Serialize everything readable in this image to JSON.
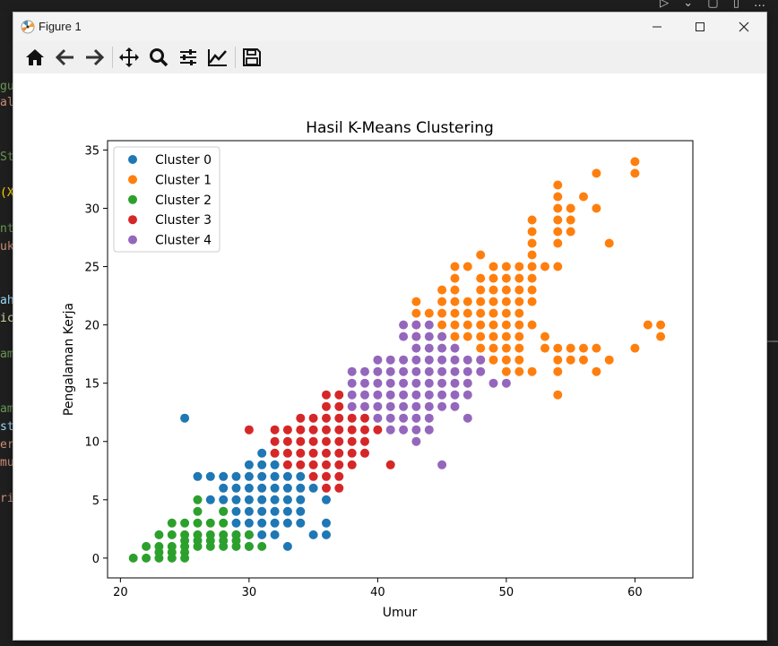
{
  "window": {
    "title": "Figure 1",
    "minimize_icon": "minimize-icon",
    "maximize_icon": "maximize-icon",
    "close_icon": "close-icon"
  },
  "editor_fragments": [
    {
      "text": "gu",
      "color": "#6a9955"
    },
    {
      "text": "al",
      "color": "#ce9178"
    },
    {
      "text": "St",
      "color": "#6a9955"
    },
    {
      "text": "(X",
      "color": "#ffd700"
    },
    {
      "text": "nt",
      "color": "#6a9955"
    },
    {
      "text": "uk",
      "color": "#ce9178"
    },
    {
      "text": "ah",
      "color": "#9cdcfe"
    },
    {
      "text": "ic",
      "color": "#dcdcaa"
    },
    {
      "text": "am",
      "color": "#6a9955"
    },
    {
      "text": "am",
      "color": "#6a9955"
    },
    {
      "text": "st",
      "color": "#9cdcfe"
    },
    {
      "text": "er",
      "color": "#ce9178"
    },
    {
      "text": "mu",
      "color": "#ce9178"
    },
    {
      "text": "ri",
      "color": "#ce9178"
    }
  ],
  "toolbar": {
    "buttons": [
      "home-icon",
      "back-icon",
      "forward-icon",
      "pan-icon",
      "zoom-icon",
      "configure-subplots-icon",
      "edit-axis-icon",
      "save-icon"
    ]
  },
  "chart_data": {
    "type": "scatter",
    "title": "Hasil K-Means Clustering",
    "xlabel": "Umur",
    "ylabel": "Pengalaman Kerja",
    "xlim": [
      19,
      64.5
    ],
    "ylim": [
      -1.7,
      35.8
    ],
    "xticks": [
      20,
      30,
      40,
      50,
      60
    ],
    "yticks": [
      0,
      5,
      10,
      15,
      20,
      25,
      30,
      35
    ],
    "grid": false,
    "legend_position": "top-left",
    "series": [
      {
        "name": "Cluster 0",
        "color": "#1f77b4",
        "points": [
          [
            25,
            12
          ],
          [
            26,
            7
          ],
          [
            27,
            7
          ],
          [
            27,
            5
          ],
          [
            28,
            7
          ],
          [
            28,
            6
          ],
          [
            28,
            5
          ],
          [
            28,
            4
          ],
          [
            29,
            7
          ],
          [
            29,
            6
          ],
          [
            29,
            5
          ],
          [
            29,
            4
          ],
          [
            29,
            3
          ],
          [
            29,
            2
          ],
          [
            30,
            8
          ],
          [
            30,
            7
          ],
          [
            30,
            6
          ],
          [
            30,
            5
          ],
          [
            30,
            4
          ],
          [
            30,
            3
          ],
          [
            30,
            2
          ],
          [
            30,
            1
          ],
          [
            31,
            9
          ],
          [
            31,
            8
          ],
          [
            31,
            7
          ],
          [
            31,
            6
          ],
          [
            31,
            5
          ],
          [
            31,
            4
          ],
          [
            31,
            3
          ],
          [
            31,
            2
          ],
          [
            32,
            8
          ],
          [
            32,
            7
          ],
          [
            32,
            6
          ],
          [
            32,
            5
          ],
          [
            32,
            4
          ],
          [
            32,
            3
          ],
          [
            32,
            2
          ],
          [
            33,
            7
          ],
          [
            33,
            6
          ],
          [
            33,
            5
          ],
          [
            33,
            4
          ],
          [
            33,
            3
          ],
          [
            33,
            1
          ],
          [
            34,
            7
          ],
          [
            34,
            6
          ],
          [
            34,
            5
          ],
          [
            34,
            4
          ],
          [
            34,
            3
          ],
          [
            35,
            6
          ],
          [
            35,
            2
          ],
          [
            36,
            5
          ],
          [
            36,
            3
          ],
          [
            36,
            2
          ]
        ]
      },
      {
        "name": "Cluster 1",
        "color": "#ff7f0e",
        "points": [
          [
            43,
            22
          ],
          [
            43,
            21
          ],
          [
            43,
            20
          ],
          [
            43,
            19
          ],
          [
            44,
            21
          ],
          [
            45,
            23
          ],
          [
            45,
            22
          ],
          [
            45,
            21
          ],
          [
            45,
            20
          ],
          [
            45,
            19
          ],
          [
            46,
            25
          ],
          [
            46,
            24
          ],
          [
            46,
            23
          ],
          [
            46,
            22
          ],
          [
            46,
            21
          ],
          [
            46,
            20
          ],
          [
            46,
            19
          ],
          [
            47,
            25
          ],
          [
            47,
            22
          ],
          [
            47,
            21
          ],
          [
            47,
            20
          ],
          [
            47,
            19
          ],
          [
            48,
            26
          ],
          [
            48,
            24
          ],
          [
            48,
            23
          ],
          [
            48,
            22
          ],
          [
            48,
            21
          ],
          [
            48,
            20
          ],
          [
            48,
            19
          ],
          [
            48,
            18
          ],
          [
            48,
            17
          ],
          [
            49,
            25
          ],
          [
            49,
            24
          ],
          [
            49,
            23
          ],
          [
            49,
            22
          ],
          [
            49,
            21
          ],
          [
            49,
            20
          ],
          [
            49,
            19
          ],
          [
            49,
            18
          ],
          [
            49,
            17
          ],
          [
            50,
            25
          ],
          [
            50,
            24
          ],
          [
            50,
            23
          ],
          [
            50,
            22
          ],
          [
            50,
            21
          ],
          [
            50,
            20
          ],
          [
            50,
            19
          ],
          [
            50,
            18
          ],
          [
            50,
            17
          ],
          [
            50,
            16
          ],
          [
            51,
            25
          ],
          [
            51,
            24
          ],
          [
            51,
            23
          ],
          [
            51,
            22
          ],
          [
            51,
            21
          ],
          [
            51,
            20
          ],
          [
            51,
            19
          ],
          [
            51,
            18
          ],
          [
            51,
            17
          ],
          [
            51,
            16
          ],
          [
            52,
            29
          ],
          [
            52,
            28
          ],
          [
            52,
            27
          ],
          [
            52,
            26
          ],
          [
            52,
            25
          ],
          [
            52,
            24
          ],
          [
            52,
            23
          ],
          [
            52,
            22
          ],
          [
            52,
            20
          ],
          [
            52,
            16
          ],
          [
            53,
            25
          ],
          [
            53,
            19
          ],
          [
            53,
            18
          ],
          [
            54,
            32
          ],
          [
            54,
            31
          ],
          [
            54,
            30
          ],
          [
            54,
            29
          ],
          [
            54,
            28
          ],
          [
            54,
            27
          ],
          [
            54,
            25
          ],
          [
            54,
            18
          ],
          [
            54,
            17
          ],
          [
            54,
            16
          ],
          [
            54,
            14
          ],
          [
            55,
            30
          ],
          [
            55,
            29
          ],
          [
            55,
            28
          ],
          [
            55,
            18
          ],
          [
            55,
            17
          ],
          [
            56,
            31
          ],
          [
            56,
            18
          ],
          [
            56,
            17
          ],
          [
            57,
            33
          ],
          [
            57,
            30
          ],
          [
            57,
            18
          ],
          [
            57,
            16
          ],
          [
            58,
            27
          ],
          [
            58,
            17
          ],
          [
            60,
            34
          ],
          [
            60,
            33
          ],
          [
            60,
            18
          ],
          [
            61,
            20
          ],
          [
            62,
            20
          ],
          [
            62,
            19
          ]
        ]
      },
      {
        "name": "Cluster 2",
        "color": "#2ca02c",
        "points": [
          [
            21,
            0
          ],
          [
            22,
            1
          ],
          [
            22,
            0
          ],
          [
            23,
            2
          ],
          [
            23,
            1
          ],
          [
            23,
            0.5
          ],
          [
            23,
            0
          ],
          [
            24,
            3
          ],
          [
            24,
            2
          ],
          [
            24,
            1
          ],
          [
            24,
            0.5
          ],
          [
            24,
            0
          ],
          [
            25,
            3
          ],
          [
            25,
            2
          ],
          [
            25,
            1.5
          ],
          [
            25,
            1
          ],
          [
            25,
            0.5
          ],
          [
            25,
            0
          ],
          [
            26,
            5
          ],
          [
            26,
            4
          ],
          [
            26,
            3
          ],
          [
            26,
            2
          ],
          [
            26,
            1.5
          ],
          [
            26,
            1
          ],
          [
            27,
            3
          ],
          [
            27,
            2
          ],
          [
            27,
            1.5
          ],
          [
            27,
            1
          ],
          [
            28,
            4
          ],
          [
            28,
            3
          ],
          [
            28,
            2
          ],
          [
            28,
            1.5
          ],
          [
            28,
            1
          ],
          [
            29,
            2
          ],
          [
            29,
            1.5
          ],
          [
            29,
            1
          ],
          [
            30,
            2
          ],
          [
            30,
            1
          ],
          [
            31,
            1
          ]
        ]
      },
      {
        "name": "Cluster 3",
        "color": "#d62728",
        "points": [
          [
            30,
            11
          ],
          [
            32,
            11
          ],
          [
            32,
            10
          ],
          [
            32,
            9
          ],
          [
            33,
            11
          ],
          [
            33,
            10
          ],
          [
            33,
            9
          ],
          [
            33,
            8
          ],
          [
            34,
            12
          ],
          [
            34,
            11
          ],
          [
            34,
            10
          ],
          [
            34,
            9
          ],
          [
            34,
            8
          ],
          [
            35,
            12
          ],
          [
            35,
            11
          ],
          [
            35,
            10
          ],
          [
            35,
            9
          ],
          [
            35,
            8
          ],
          [
            35,
            7
          ],
          [
            36,
            14
          ],
          [
            36,
            13
          ],
          [
            36,
            12
          ],
          [
            36,
            11
          ],
          [
            36,
            10
          ],
          [
            36,
            9
          ],
          [
            36,
            8
          ],
          [
            36,
            7
          ],
          [
            36,
            6
          ],
          [
            37,
            14
          ],
          [
            37,
            13
          ],
          [
            37,
            12
          ],
          [
            37,
            11
          ],
          [
            37,
            10
          ],
          [
            37,
            9
          ],
          [
            37,
            8
          ],
          [
            37,
            7
          ],
          [
            37,
            6
          ],
          [
            38,
            12
          ],
          [
            38,
            11
          ],
          [
            38,
            10
          ],
          [
            38,
            9
          ],
          [
            38,
            8
          ],
          [
            39,
            12
          ],
          [
            39,
            11
          ],
          [
            39,
            10
          ],
          [
            39,
            9
          ],
          [
            40,
            11
          ],
          [
            41,
            8
          ]
        ]
      },
      {
        "name": "Cluster 4",
        "color": "#9467bd",
        "points": [
          [
            38,
            16
          ],
          [
            38,
            15
          ],
          [
            38,
            14
          ],
          [
            38,
            13
          ],
          [
            39,
            16
          ],
          [
            39,
            15
          ],
          [
            39,
            14
          ],
          [
            39,
            13
          ],
          [
            40,
            17
          ],
          [
            40,
            16
          ],
          [
            40,
            15
          ],
          [
            40,
            14
          ],
          [
            40,
            13
          ],
          [
            40,
            12
          ],
          [
            41,
            17
          ],
          [
            41,
            16
          ],
          [
            41,
            15
          ],
          [
            41,
            14
          ],
          [
            41,
            13
          ],
          [
            41,
            12
          ],
          [
            41,
            11
          ],
          [
            42,
            20
          ],
          [
            42,
            19
          ],
          [
            42,
            17
          ],
          [
            42,
            16
          ],
          [
            42,
            15
          ],
          [
            42,
            14
          ],
          [
            42,
            13
          ],
          [
            42,
            12
          ],
          [
            42,
            11
          ],
          [
            43,
            20
          ],
          [
            43,
            19
          ],
          [
            43,
            18
          ],
          [
            43,
            17
          ],
          [
            43,
            16
          ],
          [
            43,
            15
          ],
          [
            43,
            14
          ],
          [
            43,
            13
          ],
          [
            43,
            12
          ],
          [
            43,
            11
          ],
          [
            43,
            10
          ],
          [
            44,
            20
          ],
          [
            44,
            19
          ],
          [
            44,
            18
          ],
          [
            44,
            17
          ],
          [
            44,
            16
          ],
          [
            44,
            15
          ],
          [
            44,
            14
          ],
          [
            44,
            13
          ],
          [
            44,
            12
          ],
          [
            44,
            11
          ],
          [
            45,
            19
          ],
          [
            45,
            18
          ],
          [
            45,
            17
          ],
          [
            45,
            16
          ],
          [
            45,
            15
          ],
          [
            45,
            14
          ],
          [
            45,
            13
          ],
          [
            45,
            8
          ],
          [
            46,
            18
          ],
          [
            46,
            17
          ],
          [
            46,
            16
          ],
          [
            46,
            15
          ],
          [
            46,
            14
          ],
          [
            46,
            13
          ],
          [
            47,
            17
          ],
          [
            47,
            16
          ],
          [
            47,
            15
          ],
          [
            47,
            14
          ],
          [
            47,
            12
          ],
          [
            48,
            17
          ],
          [
            48,
            16
          ],
          [
            49,
            15
          ],
          [
            50,
            15
          ]
        ]
      }
    ]
  }
}
